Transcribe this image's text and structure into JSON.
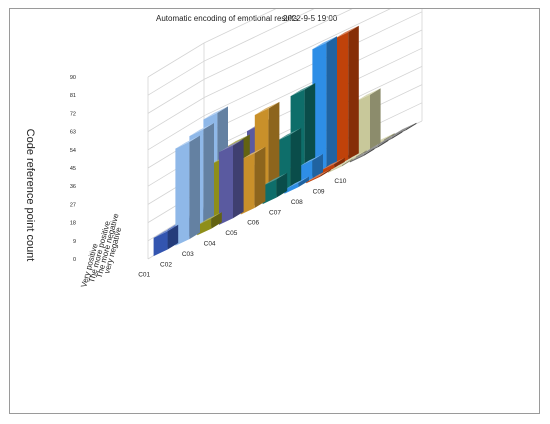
{
  "chart_data": {
    "type": "bar",
    "subtype": "3d-column",
    "title": "Automatic encoding of emotional results",
    "timestamp": "2022-9-5  19:00",
    "ylabel": "Code reference point count",
    "xlabel": "",
    "ylim": [
      0,
      90
    ],
    "yticks": [
      0,
      9,
      18,
      27,
      36,
      45,
      54,
      63,
      72,
      81,
      90
    ],
    "grid": true,
    "legend": "none",
    "categories": [
      "C01",
      "C02",
      "C03",
      "C04",
      "C05",
      "C06",
      "C07",
      "C08",
      "C09",
      "C10"
    ],
    "series": [
      {
        "name": "very negative",
        "values": [
          9,
          48,
          5,
          36,
          27,
          9,
          2,
          0,
          0,
          0
        ]
      },
      {
        "name": "The more negative",
        "values": [
          9,
          50,
          31,
          20,
          45,
          27,
          9,
          2,
          0,
          0
        ]
      },
      {
        "name": "The more positive",
        "values": [
          9,
          54,
          35,
          38,
          9,
          45,
          63,
          63,
          27,
          0
        ]
      },
      {
        "name": "Very positive",
        "values": [
          9,
          0,
          5,
          5,
          0,
          0,
          0,
          0,
          0,
          0
        ]
      }
    ],
    "colors": [
      "#3355b0",
      "#8fb8e8",
      "#8e8e1a",
      "#5a5aa0",
      "#c9902a",
      "#0e6e6a",
      "#2e8ee6",
      "#c0420a",
      "#c8c89a",
      "#666666"
    ]
  }
}
